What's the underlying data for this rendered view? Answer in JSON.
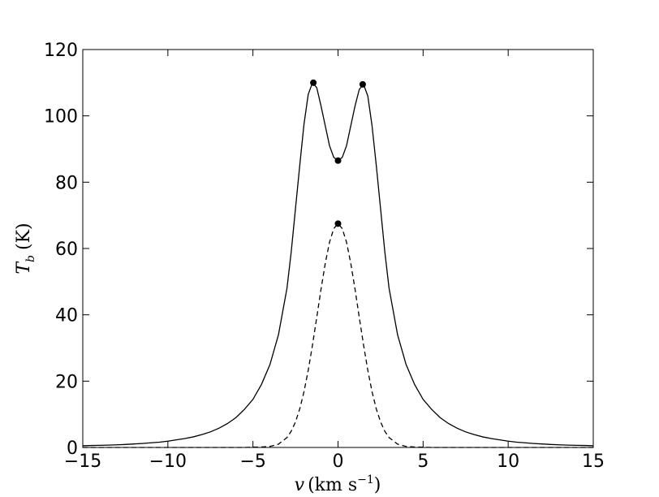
{
  "chart_data": {
    "type": "line",
    "xlabel": {
      "symbol": "v",
      "unit_open": "(km s",
      "exponent": "−1",
      "unit_close": ")"
    },
    "ylabel": {
      "symbol": "T",
      "subscript": "b",
      "unit": "(K)"
    },
    "x": [
      -15,
      -14.5,
      -14,
      -13.5,
      -13,
      -12.5,
      -12,
      -11.5,
      -11,
      -10.5,
      -10,
      -9.5,
      -9,
      -8.5,
      -8,
      -7.5,
      -7,
      -6.5,
      -6,
      -5.5,
      -5,
      -4.5,
      -4,
      -3.5,
      -3,
      -2.75,
      -2.5,
      -2.25,
      -2,
      -1.75,
      -1.5,
      -1.25,
      -1,
      -0.75,
      -0.5,
      -0.25,
      0,
      0.25,
      0.5,
      0.75,
      1,
      1.25,
      1.5,
      1.75,
      2,
      2.25,
      2.5,
      2.75,
      3,
      3.5,
      4,
      4.5,
      5,
      5.5,
      6,
      6.5,
      7,
      7.5,
      8,
      8.5,
      9,
      9.5,
      10,
      10.5,
      11,
      11.5,
      12,
      12.5,
      13,
      13.5,
      14,
      14.5,
      15
    ],
    "series": [
      {
        "color": "#000000",
        "dashed": false,
        "values": [
          0.5,
          0.6,
          0.65,
          0.7,
          0.8,
          0.9,
          1.05,
          1.2,
          1.4,
          1.6,
          1.9,
          2.3,
          2.7,
          3.2,
          3.9,
          4.7,
          5.8,
          7.2,
          9,
          11.5,
          14.5,
          19,
          25,
          34,
          48,
          59,
          72,
          85,
          97.5,
          106.5,
          110,
          108.5,
          103,
          97,
          91,
          87.5,
          86.5,
          87.5,
          91,
          97,
          103,
          108,
          109.5,
          106,
          97,
          85,
          72,
          59,
          48,
          34,
          25,
          19,
          14.5,
          11.5,
          9,
          7.2,
          5.8,
          4.7,
          3.9,
          3.2,
          2.7,
          2.3,
          1.9,
          1.6,
          1.4,
          1.2,
          1.05,
          0.9,
          0.8,
          0.7,
          0.65,
          0.6,
          0.5
        ]
      },
      {
        "color": "#000000",
        "dashed": true,
        "values": [
          0,
          0,
          0,
          0,
          0,
          0,
          0,
          0,
          0,
          0,
          0,
          0,
          0,
          0,
          0,
          0,
          0,
          0,
          0,
          0,
          0.1,
          0.15,
          0.3,
          1.0,
          3.0,
          4.9,
          7.7,
          11.6,
          16.8,
          23.3,
          30.9,
          39.2,
          47.7,
          55.5,
          61.9,
          66.0,
          67.5,
          66.0,
          61.9,
          55.5,
          47.7,
          39.2,
          30.9,
          23.3,
          16.8,
          11.6,
          7.7,
          4.9,
          3.0,
          1.0,
          0.3,
          0.15,
          0.1,
          0,
          0,
          0,
          0,
          0,
          0,
          0,
          0,
          0,
          0,
          0,
          0,
          0,
          0,
          0,
          0,
          0,
          0,
          0,
          0
        ]
      }
    ],
    "points": {
      "color": "#000000",
      "x": [
        -1.45,
        0,
        1.45,
        0
      ],
      "values": [
        110,
        86.5,
        109.5,
        67.5
      ]
    },
    "xlim": [
      -15,
      15
    ],
    "xticks": [
      {
        "value": -15,
        "label": "−15"
      },
      {
        "value": -10,
        "label": "−10"
      },
      {
        "value": -5,
        "label": "−5"
      },
      0,
      5,
      10,
      15
    ],
    "ylim": [
      0,
      120
    ],
    "yticks": [
      0,
      20,
      40,
      60,
      80,
      100,
      120
    ],
    "grid": false
  }
}
